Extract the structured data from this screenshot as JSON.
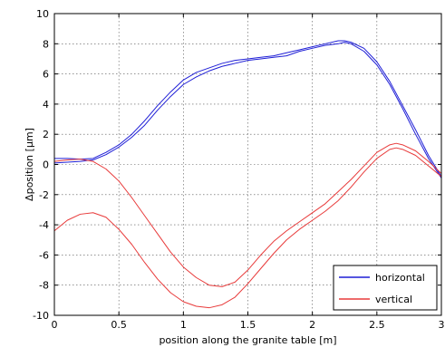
{
  "chart_data": {
    "type": "line",
    "xlabel": "position along the granite table [m]",
    "ylabel": "Δposition [μm]",
    "xlim": [
      0,
      3
    ],
    "ylim": [
      -10,
      10
    ],
    "xticks": [
      "0",
      "0.5",
      "1",
      "1.5",
      "2",
      "2.5",
      "3"
    ],
    "yticks": [
      "-10",
      "-8",
      "-6",
      "-4",
      "-2",
      "0",
      "2",
      "4",
      "6",
      "8",
      "10"
    ],
    "grid": true,
    "legend_position": "bottom-right",
    "legend": [
      {
        "label": "horizontal",
        "color": "#1f1fd6"
      },
      {
        "label": "vertical",
        "color": "#e83a3a"
      }
    ],
    "series": [
      {
        "name": "horizontal",
        "color": "#1f1fd6",
        "x": [
          0,
          0.1,
          0.2,
          0.3,
          0.4,
          0.5,
          0.6,
          0.7,
          0.8,
          0.9,
          1.0,
          1.1,
          1.2,
          1.3,
          1.4,
          1.5,
          1.6,
          1.7,
          1.8,
          1.9,
          2.0,
          2.1,
          2.2,
          2.25,
          2.3,
          2.4,
          2.5,
          2.6,
          2.7,
          2.8,
          2.9,
          3.0
        ],
        "y": [
          0.4,
          0.4,
          0.35,
          0.4,
          0.8,
          1.3,
          2.0,
          2.9,
          3.9,
          4.8,
          5.6,
          6.1,
          6.4,
          6.7,
          6.9,
          7.0,
          7.1,
          7.2,
          7.4,
          7.6,
          7.8,
          8.0,
          8.2,
          8.2,
          8.1,
          7.7,
          6.8,
          5.5,
          3.9,
          2.3,
          0.6,
          -0.8
        ]
      },
      {
        "name": "horizontal",
        "color": "#1f1fd6",
        "x": [
          0,
          0.1,
          0.2,
          0.3,
          0.4,
          0.5,
          0.6,
          0.7,
          0.8,
          0.9,
          1.0,
          1.1,
          1.2,
          1.3,
          1.4,
          1.5,
          1.6,
          1.7,
          1.8,
          1.9,
          2.0,
          2.1,
          2.2,
          2.25,
          2.3,
          2.4,
          2.5,
          2.6,
          2.7,
          2.8,
          2.9,
          3.0
        ],
        "y": [
          0.1,
          0.15,
          0.2,
          0.3,
          0.65,
          1.15,
          1.8,
          2.6,
          3.6,
          4.5,
          5.3,
          5.8,
          6.2,
          6.5,
          6.7,
          6.9,
          7.0,
          7.1,
          7.2,
          7.5,
          7.7,
          7.9,
          8.0,
          8.1,
          8.0,
          7.5,
          6.6,
          5.3,
          3.7,
          2.0,
          0.4,
          -0.9
        ]
      },
      {
        "name": "vertical",
        "color": "#e83a3a",
        "x": [
          0,
          0.1,
          0.2,
          0.3,
          0.4,
          0.5,
          0.6,
          0.7,
          0.8,
          0.9,
          1.0,
          1.1,
          1.2,
          1.3,
          1.4,
          1.5,
          1.6,
          1.7,
          1.8,
          1.9,
          2.0,
          2.1,
          2.2,
          2.3,
          2.4,
          2.5,
          2.6,
          2.65,
          2.7,
          2.8,
          2.9,
          3.0
        ],
        "y": [
          0.2,
          0.3,
          0.35,
          0.2,
          -0.3,
          -1.1,
          -2.2,
          -3.4,
          -4.6,
          -5.8,
          -6.8,
          -7.5,
          -8.0,
          -8.1,
          -7.8,
          -7.0,
          -6.0,
          -5.1,
          -4.4,
          -3.8,
          -3.2,
          -2.6,
          -1.8,
          -1.0,
          -0.1,
          0.8,
          1.3,
          1.4,
          1.3,
          0.9,
          0.2,
          -0.6
        ]
      },
      {
        "name": "vertical",
        "color": "#e83a3a",
        "x": [
          0,
          0.1,
          0.2,
          0.3,
          0.4,
          0.5,
          0.6,
          0.7,
          0.8,
          0.9,
          1.0,
          1.1,
          1.2,
          1.3,
          1.4,
          1.5,
          1.6,
          1.7,
          1.8,
          1.9,
          2.0,
          2.1,
          2.2,
          2.3,
          2.4,
          2.5,
          2.6,
          2.65,
          2.7,
          2.8,
          2.9,
          3.0
        ],
        "y": [
          -4.4,
          -3.7,
          -3.3,
          -3.2,
          -3.5,
          -4.3,
          -5.3,
          -6.5,
          -7.6,
          -8.5,
          -9.1,
          -9.4,
          -9.5,
          -9.3,
          -8.8,
          -7.9,
          -6.9,
          -5.9,
          -5.0,
          -4.3,
          -3.7,
          -3.1,
          -2.4,
          -1.5,
          -0.5,
          0.4,
          1.0,
          1.1,
          1.0,
          0.6,
          -0.1,
          -0.8
        ]
      }
    ]
  }
}
